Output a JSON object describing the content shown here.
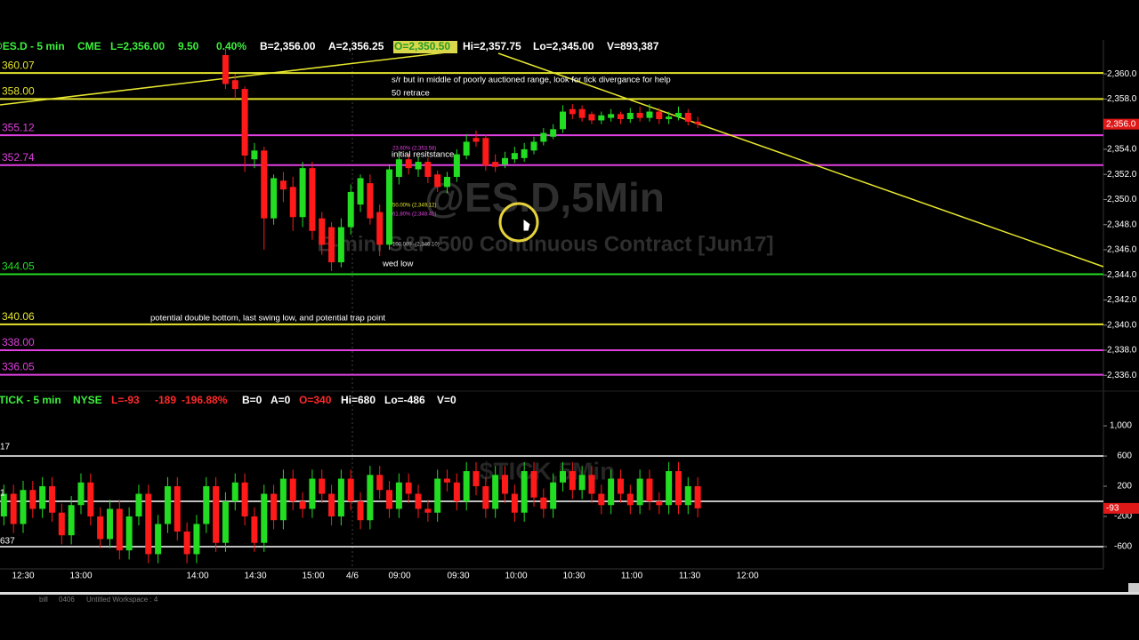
{
  "top_panel": {
    "header": [
      "@ES.D - 5 min",
      "CME",
      "L=2,356.00",
      "9.50",
      "0.40%",
      "B=2,356.00",
      "A=2,356.25",
      "O=2,350.50",
      "Hi=2,357.75",
      "Lo=2,345.00",
      "V=893,387"
    ],
    "watermark": "@ES.D,5Min",
    "watermark_subtitle": "E-mini S&P 500 Continuous Contract [Jun17]",
    "ylim": [
      2335.1,
      2362.7
    ],
    "yticks": [
      {
        "value": 2360,
        "label": "2,360.0"
      },
      {
        "value": 2358,
        "label": "2,358.0"
      },
      {
        "value": 2356,
        "label": "2,356.0"
      },
      {
        "value": 2354,
        "label": "2,354.0"
      },
      {
        "value": 2352,
        "label": "2,352.0"
      },
      {
        "value": 2350,
        "label": "2,350.0"
      },
      {
        "value": 2348,
        "label": "2,348.0"
      },
      {
        "value": 2346,
        "label": "2,346.0"
      },
      {
        "value": 2344,
        "label": "2,344.0"
      },
      {
        "value": 2342,
        "label": "2,342.0"
      },
      {
        "value": 2340,
        "label": "2,340.0"
      },
      {
        "value": 2338,
        "label": "2,338.0"
      },
      {
        "value": 2336,
        "label": "2,336.0"
      }
    ],
    "last_marker": {
      "value": 2356,
      "label": "2,356.0"
    },
    "levels": [
      {
        "value": 2360.07,
        "label": "360.07",
        "color": "#e6e62e"
      },
      {
        "value": 2358.0,
        "label": "358.00",
        "color": "#e6e62e"
      },
      {
        "value": 2355.12,
        "label": "355.12",
        "color": "#e040e0"
      },
      {
        "value": 2352.74,
        "label": "352.74",
        "color": "#e040e0"
      },
      {
        "value": 2344.05,
        "label": "344.05",
        "color": "#22dd22"
      },
      {
        "value": 2340.06,
        "label": "340.06",
        "color": "#e6e62e"
      },
      {
        "value": 2338.0,
        "label": "338.00",
        "color": "#e040e0"
      },
      {
        "value": 2336.05,
        "label": "336.05",
        "color": "#e040e0"
      }
    ],
    "notes": [
      "s/r but in middle of poorly auctioned range,  look for tick divergance for help",
      "50 retrace",
      "initial resitstance",
      "wed low",
      "potential double bottom, last swing low, and potential trap point"
    ],
    "fib_labels": [
      "23.60% (2,353.58)",
      "50.00% (2,349.12)",
      "61.80% (2,348.41)",
      "100.00% (2,346.10)"
    ],
    "up_color": "#22dd22",
    "down_color": "#ff1a1a",
    "open": [
      2361.5,
      2359.5,
      2358.8,
      2353.2,
      2353.9,
      2348.5,
      2351.5,
      2351,
      2348.6,
      2352.5,
      2348.5,
      2347.8,
      2345,
      2347.8,
      2349.6,
      2351.3,
      2349,
      2346.4,
      2351.8,
      2353.2,
      2352.4,
      2353,
      2352,
      2351,
      2351.8,
      2353.5,
      2354.9,
      2354.9,
      2353,
      2352.8,
      2353.2,
      2353.3,
      2353.9,
      2354.6,
      2355,
      2355.6,
      2357.2,
      2357.2,
      2356.8,
      2356.3,
      2356.5,
      2356.8,
      2356.4,
      2356.9,
      2356.5,
      2357,
      2356.4,
      2356.6,
      2356.9,
      2356.2
    ],
    "close": [
      2359.2,
      2358.8,
      2353.5,
      2353.9,
      2348.5,
      2351.7,
      2350.8,
      2348.6,
      2352.5,
      2347.5,
      2346.4,
      2345,
      2347.8,
      2350.6,
      2351.7,
      2348.5,
      2346.4,
      2352.4,
      2353.2,
      2352.5,
      2353,
      2351.8,
      2351,
      2351.8,
      2353.6,
      2354.6,
      2354.6,
      2352.7,
      2352.6,
      2353.3,
      2353.7,
      2354,
      2354.6,
      2355.3,
      2355.6,
      2357,
      2356.8,
      2356.5,
      2356.3,
      2356.7,
      2356.8,
      2356.4,
      2356.9,
      2356.5,
      2357,
      2356.4,
      2356.6,
      2356.9,
      2356.2,
      2356
    ],
    "high": [
      2362,
      2360,
      2359,
      2354.5,
      2354.2,
      2352,
      2352.2,
      2351.8,
      2353,
      2353,
      2349,
      2348.2,
      2348.5,
      2351.2,
      2352,
      2352,
      2349.6,
      2352.8,
      2353.8,
      2353.6,
      2353.4,
      2353.3,
      2352.3,
      2352.2,
      2354,
      2355.2,
      2355.5,
      2355.2,
      2353.6,
      2353.8,
      2354.2,
      2354.5,
      2355,
      2355.7,
      2356,
      2357.5,
      2357.6,
      2357.5,
      2357,
      2357,
      2357.2,
      2357,
      2357.3,
      2357.4,
      2357.6,
      2357.3,
      2357,
      2357.4,
      2357.2,
      2356.6
    ],
    "low": [
      2358.8,
      2358,
      2352.2,
      2352.5,
      2346,
      2348,
      2349.8,
      2347.5,
      2347.8,
      2346.8,
      2345.6,
      2344.3,
      2344.6,
      2347.2,
      2349,
      2348,
      2345.5,
      2346,
      2351.2,
      2352,
      2351.8,
      2351.3,
      2350.6,
      2350.5,
      2351.4,
      2353.2,
      2354.2,
      2352.3,
      2352.2,
      2352.5,
      2352.9,
      2353,
      2353.6,
      2354.3,
      2354.8,
      2355.3,
      2356.4,
      2356.2,
      2356,
      2356,
      2356.2,
      2356,
      2356.1,
      2356.2,
      2356.2,
      2356,
      2356,
      2356.3,
      2355.9,
      2355.7
    ]
  },
  "tick_panel": {
    "header": [
      "$TICK - 5 min",
      "NYSE",
      "L=-93",
      "-189",
      "-196.88%",
      "B=0",
      "A=0",
      "O=340",
      "Hi=680",
      "Lo=-486",
      "V=0"
    ],
    "watermark": "$TICK,5Min",
    "side_labels": [
      "17",
      "1",
      "637"
    ],
    "ylim": [
      -895,
      1460
    ],
    "yticks": [
      {
        "value": 1000,
        "label": "1,000"
      },
      600,
      200,
      -200,
      -600
    ],
    "levels": [
      600,
      0,
      -600
    ],
    "last_marker": -93,
    "up_color": "#22dd22",
    "down_color": "#ff1a1a",
    "open": [
      -200,
      100,
      -300,
      150,
      -100,
      200,
      -150,
      -450,
      -50,
      250,
      -200,
      -500,
      -100,
      -650,
      -200,
      100,
      -700,
      -300,
      200,
      -400,
      -700,
      -300,
      200,
      -550,
      0,
      250,
      -200,
      -550,
      100,
      -250,
      300,
      0,
      -100,
      300,
      100,
      -200,
      300,
      0,
      -250,
      350,
      150,
      -100,
      250,
      100,
      -100,
      -150,
      300,
      250,
      0,
      400,
      200,
      -100,
      350,
      100,
      -150,
      400,
      50,
      -100,
      250,
      400,
      150,
      350,
      100,
      -50,
      300,
      100,
      -50,
      300,
      0,
      -50,
      400,
      -50,
      200
    ],
    "close": [
      100,
      -300,
      150,
      -100,
      200,
      -150,
      -450,
      -50,
      250,
      -200,
      -500,
      -100,
      -650,
      -200,
      100,
      -700,
      -300,
      200,
      -400,
      -700,
      -300,
      200,
      -550,
      0,
      250,
      -200,
      -550,
      100,
      -250,
      300,
      0,
      -100,
      300,
      100,
      -200,
      300,
      0,
      -250,
      350,
      150,
      -100,
      250,
      100,
      -100,
      -150,
      300,
      250,
      0,
      400,
      200,
      -100,
      350,
      100,
      -150,
      400,
      50,
      -100,
      250,
      400,
      150,
      350,
      100,
      -50,
      300,
      100,
      -50,
      300,
      0,
      -50,
      400,
      -50,
      200,
      -93
    ],
    "high": [
      220,
      220,
      270,
      270,
      320,
      320,
      -30,
      70,
      370,
      370,
      -80,
      20,
      20,
      -80,
      220,
      220,
      -180,
      320,
      320,
      -280,
      -180,
      320,
      320,
      120,
      370,
      370,
      -80,
      220,
      220,
      420,
      420,
      120,
      420,
      420,
      220,
      420,
      420,
      120,
      470,
      470,
      270,
      370,
      370,
      220,
      20,
      420,
      420,
      370,
      520,
      520,
      320,
      470,
      470,
      220,
      520,
      520,
      170,
      370,
      520,
      520,
      470,
      470,
      220,
      420,
      420,
      220,
      420,
      420,
      120,
      520,
      520,
      320,
      320
    ],
    "low": [
      -320,
      -420,
      -420,
      -220,
      -220,
      -270,
      -570,
      -570,
      -170,
      -320,
      -620,
      -620,
      -770,
      -770,
      -320,
      -820,
      -820,
      -420,
      -520,
      -820,
      -820,
      -420,
      -670,
      -670,
      -120,
      -320,
      -670,
      -670,
      -370,
      -370,
      -120,
      -220,
      -220,
      -20,
      -320,
      -320,
      -120,
      -370,
      -370,
      30,
      -220,
      -220,
      -20,
      -220,
      -270,
      -270,
      130,
      -120,
      -120,
      80,
      -220,
      -220,
      -20,
      -270,
      -270,
      -70,
      -220,
      -220,
      130,
      30,
      30,
      -20,
      -170,
      -170,
      -20,
      -170,
      -170,
      -120,
      -170,
      -170,
      -170,
      -170,
      -213
    ]
  },
  "x_axis": {
    "labels": [
      "12:30",
      "13:00",
      "14:00",
      "14:30",
      "15:00",
      "4/6",
      "09:00",
      "09:30",
      "10:00",
      "10:30",
      "11:00",
      "11:30",
      "12:00"
    ]
  },
  "tabs": [
    "bill",
    "0406",
    "Untitled Workspace : 4"
  ]
}
